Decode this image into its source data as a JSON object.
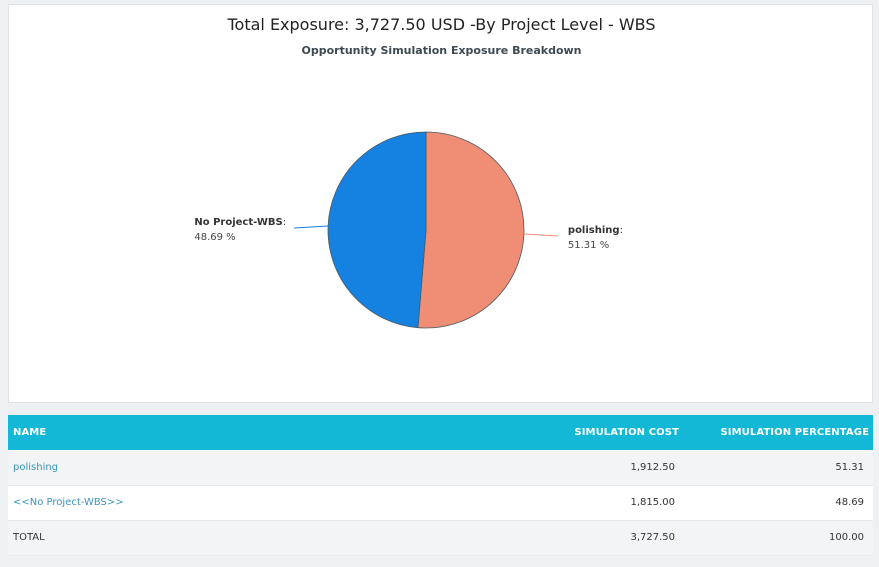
{
  "chart_data": {
    "type": "pie",
    "title": "Total Exposure: 3,727.50 USD -By Project Level - WBS",
    "subtitle": "Opportunity Simulation Exposure Breakdown",
    "slices": [
      {
        "name": "polishing",
        "value": 51.31,
        "label": "51.31 %",
        "color": "#ef8d75"
      },
      {
        "name": "No Project-WBS",
        "value": 48.69,
        "label": "48.69 %",
        "color": "#1581e0"
      }
    ]
  },
  "table": {
    "headers": {
      "name": "NAME",
      "cost": "SIMULATION COST",
      "pct": "SIMULATION PERCENTAGE"
    },
    "rows": [
      {
        "name": "polishing",
        "cost": "1,912.50",
        "pct": "51.31"
      },
      {
        "name": "<<No Project-WBS>>",
        "cost": "1,815.00",
        "pct": "48.69"
      }
    ],
    "total": {
      "name": "TOTAL",
      "cost": "3,727.50",
      "pct": "100.00"
    }
  }
}
